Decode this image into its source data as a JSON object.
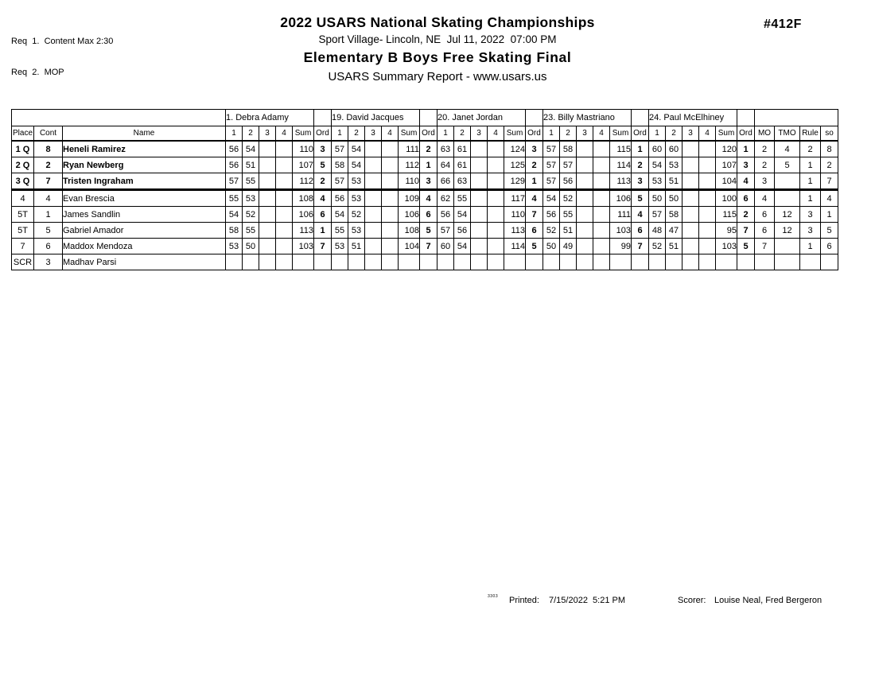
{
  "header": {
    "req_line_1": "Req  1.  Content Max 2:30",
    "req_line_2": "Req  2.  MOP",
    "title": "2022 USARS National Skating Championships",
    "venue_line": "Sport Village- Lincoln, NE  Jul 11, 2022  07:00 PM",
    "event_title": "Elementary B Boys Free Skating Final",
    "report_line": "USARS Summary Report - www.usars.us",
    "event_number": "#412F"
  },
  "table": {
    "judges": [
      "1.  Debra Adamy",
      "19.  David Jacques",
      "20.  Janet Jordan",
      "23.  Billy Mastriano",
      "24.  Paul McElhiney"
    ],
    "columns": {
      "place": "Place",
      "cont": "Cont",
      "name": "Name",
      "score_cols": [
        "1",
        "2",
        "3",
        "4"
      ],
      "sum": "Sum",
      "ord": "Ord",
      "extras": [
        "MO",
        "TMO",
        "Rule",
        "so"
      ]
    },
    "rows": [
      {
        "place": "1 Q",
        "cont": "8",
        "name": "Heneli Ramirez",
        "judges": [
          [
            "56",
            "54",
            "",
            "",
            "110",
            "3"
          ],
          [
            "57",
            "54",
            "",
            "",
            "111",
            "2"
          ],
          [
            "63",
            "61",
            "",
            "",
            "124",
            "3"
          ],
          [
            "57",
            "58",
            "",
            "",
            "115",
            "1"
          ],
          [
            "60",
            "60",
            "",
            "",
            "120",
            "1"
          ]
        ],
        "mo": "2",
        "tmo": "4",
        "rule": "2",
        "so": "8"
      },
      {
        "place": "2 Q",
        "cont": "2",
        "name": "Ryan Newberg",
        "judges": [
          [
            "56",
            "51",
            "",
            "",
            "107",
            "5"
          ],
          [
            "58",
            "54",
            "",
            "",
            "112",
            "1"
          ],
          [
            "64",
            "61",
            "",
            "",
            "125",
            "2"
          ],
          [
            "57",
            "57",
            "",
            "",
            "114",
            "2"
          ],
          [
            "54",
            "53",
            "",
            "",
            "107",
            "3"
          ]
        ],
        "mo": "2",
        "tmo": "5",
        "rule": "1",
        "so": "2"
      },
      {
        "place": "3 Q",
        "cont": "7",
        "name": "Tristen Ingraham",
        "judges": [
          [
            "57",
            "55",
            "",
            "",
            "112",
            "2"
          ],
          [
            "57",
            "53",
            "",
            "",
            "110",
            "3"
          ],
          [
            "66",
            "63",
            "",
            "",
            "129",
            "1"
          ],
          [
            "57",
            "56",
            "",
            "",
            "113",
            "3"
          ],
          [
            "53",
            "51",
            "",
            "",
            "104",
            "4"
          ]
        ],
        "mo": "3",
        "tmo": "",
        "rule": "1",
        "so": "7"
      },
      {
        "place": "4",
        "cont": "4",
        "name": "Evan Brescia",
        "judges": [
          [
            "55",
            "53",
            "",
            "",
            "108",
            "4"
          ],
          [
            "56",
            "53",
            "",
            "",
            "109",
            "4"
          ],
          [
            "62",
            "55",
            "",
            "",
            "117",
            "4"
          ],
          [
            "54",
            "52",
            "",
            "",
            "106",
            "5"
          ],
          [
            "50",
            "50",
            "",
            "",
            "100",
            "6"
          ]
        ],
        "mo": "4",
        "tmo": "",
        "rule": "1",
        "so": "4"
      },
      {
        "place": "5T",
        "cont": "1",
        "name": "James Sandlin",
        "judges": [
          [
            "54",
            "52",
            "",
            "",
            "106",
            "6"
          ],
          [
            "54",
            "52",
            "",
            "",
            "106",
            "6"
          ],
          [
            "56",
            "54",
            "",
            "",
            "110",
            "7"
          ],
          [
            "56",
            "55",
            "",
            "",
            "111",
            "4"
          ],
          [
            "57",
            "58",
            "",
            "",
            "115",
            "2"
          ]
        ],
        "mo": "6",
        "tmo": "12",
        "rule": "3",
        "so": "1"
      },
      {
        "place": "5T",
        "cont": "5",
        "name": "Gabriel Amador",
        "judges": [
          [
            "58",
            "55",
            "",
            "",
            "113",
            "1"
          ],
          [
            "55",
            "53",
            "",
            "",
            "108",
            "5"
          ],
          [
            "57",
            "56",
            "",
            "",
            "113",
            "6"
          ],
          [
            "52",
            "51",
            "",
            "",
            "103",
            "6"
          ],
          [
            "48",
            "47",
            "",
            "",
            "95",
            "7"
          ]
        ],
        "mo": "6",
        "tmo": "12",
        "rule": "3",
        "so": "5"
      },
      {
        "place": "7",
        "cont": "6",
        "name": "Maddox Mendoza",
        "judges": [
          [
            "53",
            "50",
            "",
            "",
            "103",
            "7"
          ],
          [
            "53",
            "51",
            "",
            "",
            "104",
            "7"
          ],
          [
            "60",
            "54",
            "",
            "",
            "114",
            "5"
          ],
          [
            "50",
            "49",
            "",
            "",
            "99",
            "7"
          ],
          [
            "52",
            "51",
            "",
            "",
            "103",
            "5"
          ]
        ],
        "mo": "7",
        "tmo": "",
        "rule": "1",
        "so": "6"
      },
      {
        "place": "SCR",
        "cont": "3",
        "name": "Madhav Parsi",
        "judges": [
          [
            "",
            "",
            "",
            "",
            "",
            ""
          ],
          [
            "",
            "",
            "",
            "",
            "",
            ""
          ],
          [
            "",
            "",
            "",
            "",
            "",
            ""
          ],
          [
            "",
            "",
            "",
            "",
            "",
            ""
          ],
          [
            "",
            "",
            "",
            "",
            "",
            ""
          ]
        ],
        "mo": "",
        "tmo": "",
        "rule": "",
        "so": ""
      }
    ]
  },
  "footer": {
    "code": "3303",
    "printed_label": "Printed:",
    "printed_value": "7/15/2022  5:21 PM",
    "scorer_label": "Scorer:",
    "scorer_value": "Louise Neal, Fred Bergeron"
  }
}
